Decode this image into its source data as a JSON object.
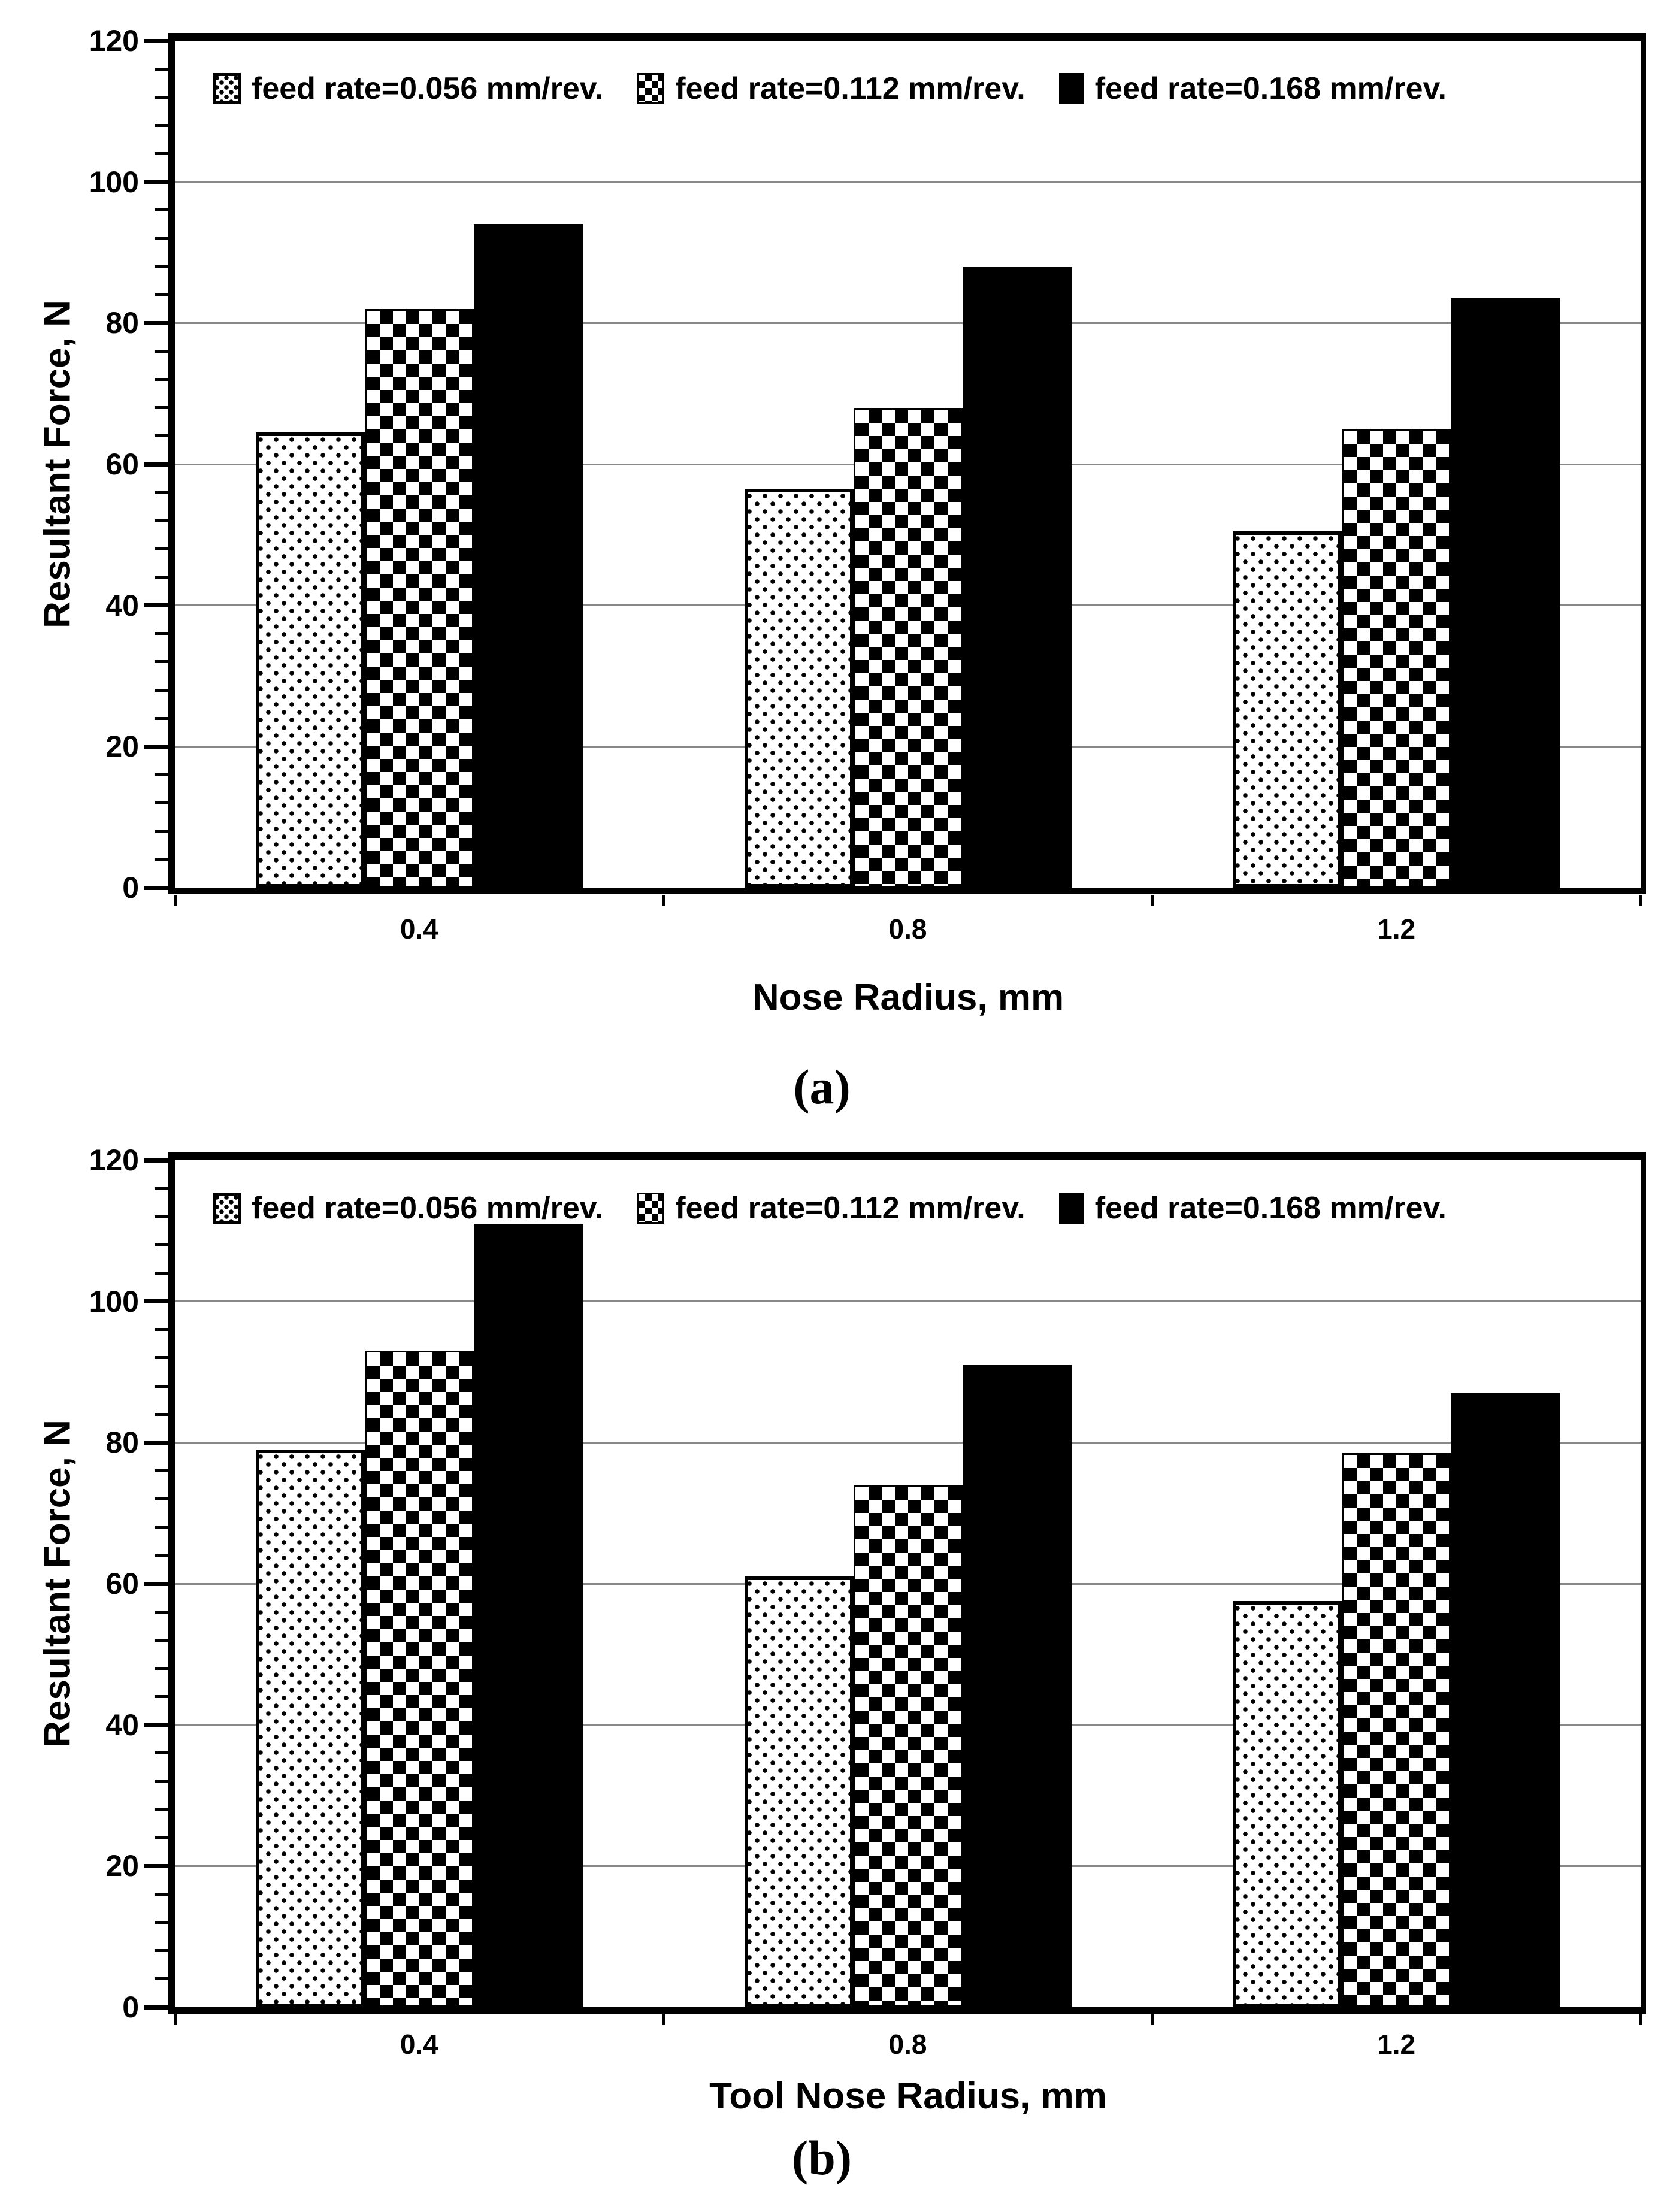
{
  "page": {
    "background": "#ffffff"
  },
  "panel_labels": [
    "(a)",
    "(b)"
  ],
  "colors": {
    "bar_fill": "#000000",
    "bar_bg": "#ffffff",
    "gridline": "#888888",
    "text": "#000000"
  },
  "chart_data": [
    {
      "type": "bar",
      "panel": "(a)",
      "xlabel": "Nose Radius, mm",
      "ylabel": "Resultant Force, N",
      "ylim": [
        0,
        120
      ],
      "yticks": [
        0,
        20,
        40,
        60,
        80,
        100,
        120
      ],
      "minor_tick_step": 4,
      "grid": true,
      "legend_position": "top-inside",
      "categories": [
        "0.4",
        "0.8",
        "1.2"
      ],
      "series": [
        {
          "name": "feed rate=0.056 mm/rev.",
          "pattern": "dotted",
          "values": [
            64.5,
            56.5,
            50.5
          ]
        },
        {
          "name": "feed rate=0.112 mm/rev.",
          "pattern": "checker",
          "values": [
            82,
            68,
            65
          ]
        },
        {
          "name": "feed rate=0.168 mm/rev.",
          "pattern": "solid",
          "values": [
            94,
            88,
            83.5
          ]
        }
      ]
    },
    {
      "type": "bar",
      "panel": "(b)",
      "xlabel": "Tool Nose Radius, mm",
      "ylabel": "Resultant Force, N",
      "ylim": [
        0,
        120
      ],
      "yticks": [
        0,
        20,
        40,
        60,
        80,
        100,
        120
      ],
      "minor_tick_step": 4,
      "grid": true,
      "legend_position": "top-inside",
      "categories": [
        "0.4",
        "0.8",
        "1.2"
      ],
      "series": [
        {
          "name": "feed rate=0.056 mm/rev.",
          "pattern": "dotted",
          "values": [
            79,
            61,
            57.5
          ]
        },
        {
          "name": "feed rate=0.112 mm/rev.",
          "pattern": "checker",
          "values": [
            93,
            74,
            78.5
          ]
        },
        {
          "name": "feed rate=0.168 mm/rev.",
          "pattern": "solid",
          "values": [
            111,
            91,
            87
          ]
        }
      ]
    }
  ]
}
